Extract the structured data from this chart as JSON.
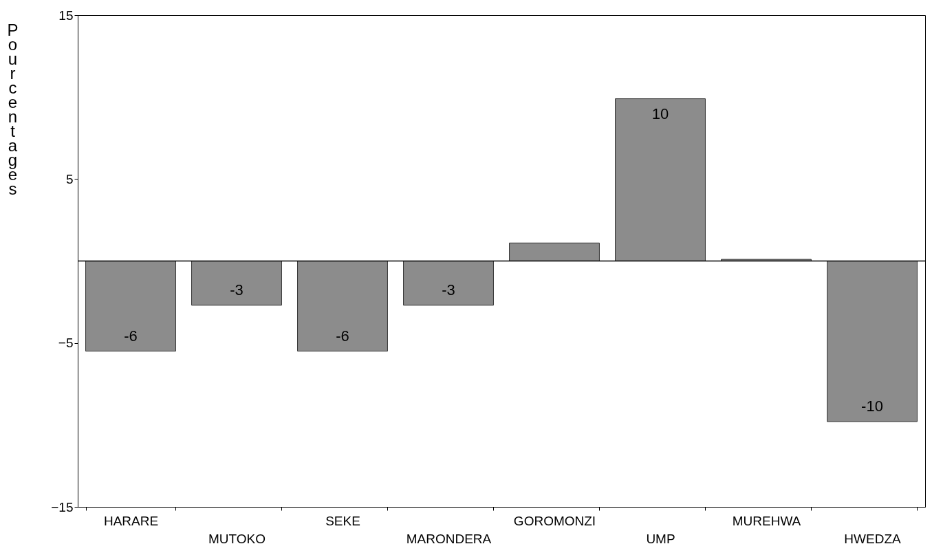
{
  "chart_data": {
    "type": "bar",
    "ylabel": "Pourcentages",
    "categories": [
      "HARARE",
      "MUTOKO",
      "SEKE",
      "MARONDERA",
      "GOROMONZI",
      "UMP",
      "MUREHWA",
      "HWEDZA"
    ],
    "values": [
      -5.5,
      -2.7,
      -5.5,
      -2.7,
      1.1,
      9.9,
      0.1,
      -9.8
    ],
    "value_labels": [
      "-6",
      "-3",
      "-6",
      "-3",
      null,
      "10",
      null,
      "-10"
    ],
    "color": "#8c8c8c",
    "ylim": [
      -15,
      15
    ],
    "yticks": [
      -15,
      -5,
      5,
      15
    ],
    "ref_lines": [
      {
        "axis": "y",
        "value": 0
      }
    ],
    "grid": false
  }
}
